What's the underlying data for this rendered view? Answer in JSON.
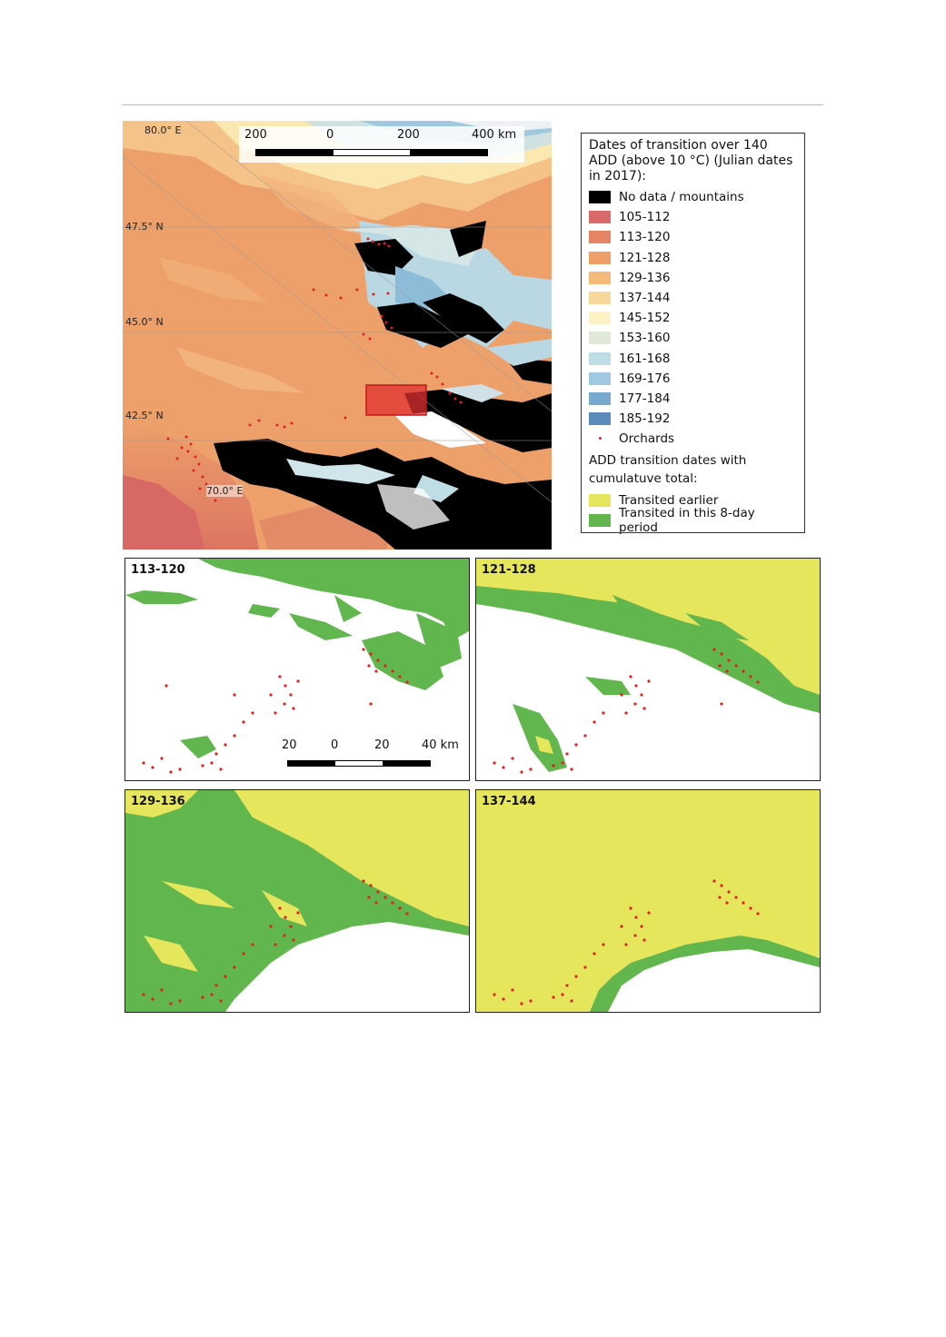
{
  "main_map": {
    "coords": {
      "lon_80": "80.0° E",
      "lat_475": "47.5° N",
      "lat_450": "45.0° N",
      "lat_425": "42.5° N",
      "lon_70": "70.0° E"
    },
    "scale": {
      "labels": [
        "200",
        "0",
        "200",
        "400 km"
      ]
    }
  },
  "legend": {
    "title": "Dates of transition over 140 ADD (above 10 °C) (Julian dates in 2017):",
    "items": [
      {
        "label": "No data / mountains",
        "color": "#000000"
      },
      {
        "label": "105-112",
        "color": "#d96a6a"
      },
      {
        "label": "113-120",
        "color": "#e58563"
      },
      {
        "label": "121-128",
        "color": "#ef9f67"
      },
      {
        "label": "129-136",
        "color": "#f5b97a"
      },
      {
        "label": "137-144",
        "color": "#f9d79a"
      },
      {
        "label": "145-152",
        "color": "#fbf3c6"
      },
      {
        "label": "153-160",
        "color": "#e1ead8"
      },
      {
        "label": "161-168",
        "color": "#bfdde4"
      },
      {
        "label": "169-176",
        "color": "#9fc9e0"
      },
      {
        "label": "177-184",
        "color": "#7aa9cf"
      },
      {
        "label": "185-192",
        "color": "#5b8bbd"
      }
    ],
    "orchards_label": "Orchards",
    "orchard_color": "#e02020",
    "sub_title": "ADD transition dates with cumulatuve total:",
    "cumulative": [
      {
        "label": "Transited earlier",
        "color": "#e6e65c"
      },
      {
        "label": "Transited in this 8-day period",
        "color": "#62b64e"
      }
    ]
  },
  "panels": [
    {
      "label": "113-120"
    },
    {
      "label": "121-128"
    },
    {
      "label": "129-136"
    },
    {
      "label": "137-144"
    }
  ],
  "inset_scale": {
    "labels": [
      "20",
      "0",
      "20",
      "40 km"
    ]
  }
}
